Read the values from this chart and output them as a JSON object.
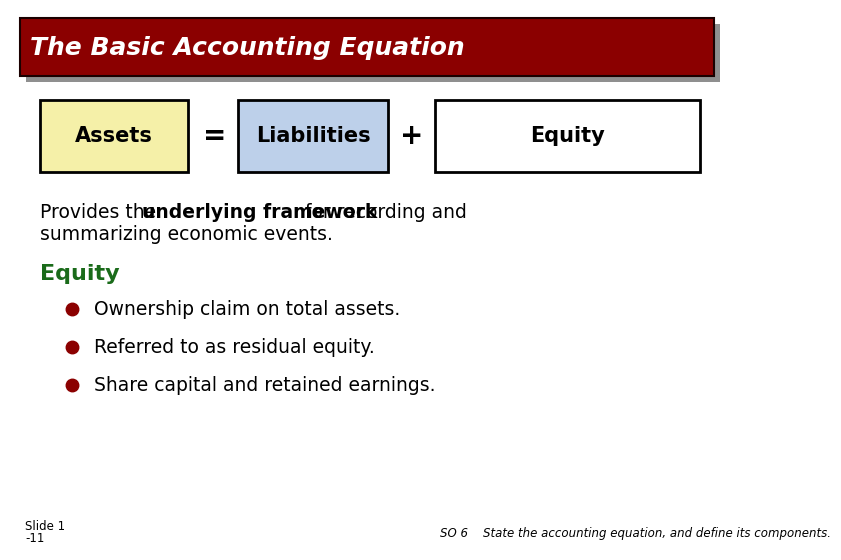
{
  "title": "The Basic Accounting Equation",
  "title_bg_color": "#8B0000",
  "title_text_color": "#FFFFFF",
  "box1_label": "Assets",
  "box1_color": "#F5F0A8",
  "box1_border": "#000000",
  "box2_label": "Liabilities",
  "box2_color": "#BDD0EA",
  "box2_border": "#000000",
  "box3_label": "Equity",
  "box3_color": "#FFFFFF",
  "box3_border": "#000000",
  "eq_sign": "=",
  "plus_sign": "+",
  "section_header": "Equity",
  "section_header_color": "#1A6B1A",
  "bullet_color": "#8B0000",
  "bullets": [
    "Ownership claim on total assets.",
    "Referred to as residual equity.",
    "Share capital and retained earnings."
  ],
  "footer_left_line1": "Slide 1",
  "footer_left_line2": "-11",
  "footer_right": "SO 6    State the accounting equation, and define its components.",
  "bg_color": "#FFFFFF"
}
